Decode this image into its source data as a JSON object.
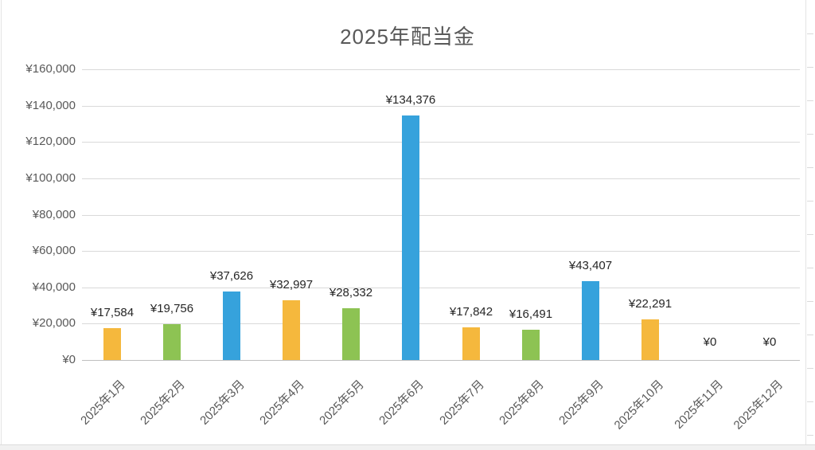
{
  "chart_data": {
    "type": "bar",
    "title": "2025年配当金",
    "categories": [
      "2025年1月",
      "2025年2月",
      "2025年3月",
      "2025年4月",
      "2025年5月",
      "2025年6月",
      "2025年7月",
      "2025年8月",
      "2025年9月",
      "2025年10月",
      "2025年11月",
      "2025年12月"
    ],
    "values": [
      17584,
      19756,
      37626,
      32997,
      28332,
      134376,
      17842,
      16491,
      43407,
      22291,
      0,
      0
    ],
    "data_labels": [
      "¥17,584",
      "¥19,756",
      "¥37,626",
      "¥32,997",
      "¥28,332",
      "¥134,376",
      "¥17,842",
      "¥16,491",
      "¥43,407",
      "¥22,291",
      "¥0",
      "¥0"
    ],
    "y_tick_labels": [
      "¥0",
      "¥20,000",
      "¥40,000",
      "¥60,000",
      "¥80,000",
      "¥100,000",
      "¥120,000",
      "¥140,000",
      "¥160,000"
    ],
    "ylabel": "",
    "xlabel": "",
    "ylim": [
      0,
      160000
    ],
    "y_step": 20000,
    "grid": true,
    "legend": "none",
    "bar_color_cycle": [
      "#F5B83D",
      "#8DC353",
      "#36A2DC"
    ],
    "colors": {
      "title_text": "#595959",
      "axis_text": "#595959",
      "data_label_text": "#262626",
      "gridline": "#D9D9D9",
      "axis_line": "#BFBFBF",
      "frame_line": "#E4E4E4",
      "bottom_strip": "#F1F1F1",
      "bottom_strip_border": "#DCDCDC"
    }
  }
}
